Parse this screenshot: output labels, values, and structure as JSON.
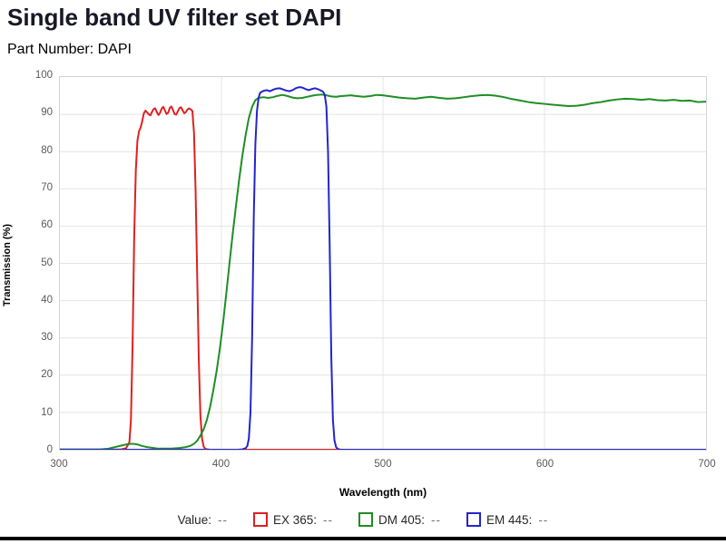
{
  "page": {
    "title": "Single band UV filter set DAPI",
    "subtitle": "Part Number: DAPI"
  },
  "colors": {
    "title_text": "#181826",
    "red": "#df2020",
    "green": "#1e8e24",
    "blue": "#2424cc",
    "grid": "#e4e4e4",
    "plot_border": "#d4d4d4",
    "tick_label": "#595959"
  },
  "legend": {
    "value_label": "Value:",
    "value": "--",
    "items": [
      {
        "name": "EX 365",
        "label": "EX 365:",
        "value": "--",
        "color": "#df2020"
      },
      {
        "name": "DM 405",
        "label": "DM 405:",
        "value": "--",
        "color": "#1e8e24"
      },
      {
        "name": "EM 445",
        "label": "EM 445:",
        "value": "--",
        "color": "#2424cc"
      }
    ]
  },
  "chart_data": {
    "type": "line",
    "title": "Single band UV filter set DAPI",
    "subtitle": "Part Number: DAPI",
    "xlabel": "Wavelength (nm)",
    "ylabel": "Transmission (%)",
    "xlim": [
      300,
      700
    ],
    "ylim": [
      0,
      100
    ],
    "x_ticks": [
      300,
      400,
      500,
      600,
      700
    ],
    "y_ticks": [
      0,
      10,
      20,
      30,
      40,
      50,
      60,
      70,
      80,
      90,
      100
    ],
    "grid": true,
    "legend_position": "bottom",
    "series": [
      {
        "name": "EX 365",
        "id": "ex365",
        "color": "#df2020",
        "points": [
          [
            300,
            0
          ],
          [
            330,
            0
          ],
          [
            338,
            0.1
          ],
          [
            341,
            0.4
          ],
          [
            343,
            2
          ],
          [
            344,
            8
          ],
          [
            345,
            28
          ],
          [
            346,
            57
          ],
          [
            347,
            75
          ],
          [
            348,
            83
          ],
          [
            349,
            85.5
          ],
          [
            350,
            86.5
          ],
          [
            351,
            88.2
          ],
          [
            352,
            90.3
          ],
          [
            353,
            91
          ],
          [
            354,
            90.5
          ],
          [
            355,
            90
          ],
          [
            356,
            89.7
          ],
          [
            357,
            90.6
          ],
          [
            358,
            91.4
          ],
          [
            359,
            91.6
          ],
          [
            360,
            90.6
          ],
          [
            361,
            89.8
          ],
          [
            362,
            90.4
          ],
          [
            363,
            91.5
          ],
          [
            364,
            92
          ],
          [
            365,
            91.1
          ],
          [
            366,
            90.1
          ],
          [
            367,
            90.4
          ],
          [
            368,
            91.7
          ],
          [
            369,
            92.1
          ],
          [
            370,
            91.2
          ],
          [
            371,
            90.1
          ],
          [
            372,
            89.9
          ],
          [
            373,
            90.8
          ],
          [
            374,
            91.7
          ],
          [
            375,
            91.9
          ],
          [
            376,
            91
          ],
          [
            377,
            90.3
          ],
          [
            378,
            90.6
          ],
          [
            379,
            91.3
          ],
          [
            380,
            91.6
          ],
          [
            381,
            91.3
          ],
          [
            382,
            90.9
          ],
          [
            383,
            85
          ],
          [
            384,
            70
          ],
          [
            385,
            47
          ],
          [
            386,
            24
          ],
          [
            387,
            9
          ],
          [
            388,
            3
          ],
          [
            389,
            0.8
          ],
          [
            390,
            0.2
          ],
          [
            393,
            0
          ],
          [
            700,
            0
          ]
        ]
      },
      {
        "name": "DM 405",
        "id": "dm405",
        "color": "#1e8e24",
        "points": [
          [
            300,
            0.1
          ],
          [
            325,
            0.1
          ],
          [
            330,
            0.3
          ],
          [
            334,
            0.7
          ],
          [
            338,
            1.1
          ],
          [
            342,
            1.5
          ],
          [
            345,
            1.6
          ],
          [
            348,
            1.4
          ],
          [
            351,
            1
          ],
          [
            354,
            0.7
          ],
          [
            357,
            0.5
          ],
          [
            360,
            0.35
          ],
          [
            365,
            0.3
          ],
          [
            370,
            0.35
          ],
          [
            374,
            0.45
          ],
          [
            378,
            0.7
          ],
          [
            381,
            1.1
          ],
          [
            383,
            1.6
          ],
          [
            385,
            2.4
          ],
          [
            387,
            3.8
          ],
          [
            389,
            5.5
          ],
          [
            391,
            8
          ],
          [
            393,
            11.5
          ],
          [
            395,
            16
          ],
          [
            397,
            21
          ],
          [
            399,
            27
          ],
          [
            401,
            34
          ],
          [
            403,
            42
          ],
          [
            405,
            50
          ],
          [
            407,
            58
          ],
          [
            409,
            65.5
          ],
          [
            411,
            72.5
          ],
          [
            413,
            79
          ],
          [
            415,
            84.5
          ],
          [
            417,
            89
          ],
          [
            419,
            92
          ],
          [
            421,
            93.8
          ],
          [
            423,
            94.4
          ],
          [
            426,
            94.6
          ],
          [
            429,
            94.4
          ],
          [
            432,
            94.6
          ],
          [
            435,
            95
          ],
          [
            438,
            95.2
          ],
          [
            441,
            94.9
          ],
          [
            444,
            94.5
          ],
          [
            447,
            94.3
          ],
          [
            450,
            94.4
          ],
          [
            453,
            94.7
          ],
          [
            456,
            95
          ],
          [
            459,
            95.2
          ],
          [
            462,
            95.3
          ],
          [
            465,
            95.1
          ],
          [
            468,
            94.8
          ],
          [
            471,
            94.7
          ],
          [
            474,
            94.9
          ],
          [
            477,
            95
          ],
          [
            480,
            95.1
          ],
          [
            484,
            94.9
          ],
          [
            488,
            94.7
          ],
          [
            492,
            94.9
          ],
          [
            496,
            95.2
          ],
          [
            500,
            95.1
          ],
          [
            505,
            94.8
          ],
          [
            510,
            94.5
          ],
          [
            515,
            94.3
          ],
          [
            520,
            94.2
          ],
          [
            525,
            94.5
          ],
          [
            530,
            94.7
          ],
          [
            535,
            94.4
          ],
          [
            540,
            94.2
          ],
          [
            545,
            94.3
          ],
          [
            550,
            94.6
          ],
          [
            555,
            94.9
          ],
          [
            560,
            95.1
          ],
          [
            565,
            95.2
          ],
          [
            570,
            95
          ],
          [
            575,
            94.6
          ],
          [
            580,
            94.1
          ],
          [
            585,
            93.7
          ],
          [
            590,
            93.3
          ],
          [
            595,
            93
          ],
          [
            600,
            92.8
          ],
          [
            605,
            92.6
          ],
          [
            610,
            92.4
          ],
          [
            615,
            92.2
          ],
          [
            620,
            92.3
          ],
          [
            625,
            92.6
          ],
          [
            630,
            93
          ],
          [
            635,
            93.3
          ],
          [
            640,
            93.7
          ],
          [
            645,
            94
          ],
          [
            650,
            94.2
          ],
          [
            655,
            94.1
          ],
          [
            660,
            93.9
          ],
          [
            665,
            94.1
          ],
          [
            670,
            93.8
          ],
          [
            675,
            93.7
          ],
          [
            680,
            93.9
          ],
          [
            685,
            93.6
          ],
          [
            690,
            93.7
          ],
          [
            695,
            93.3
          ],
          [
            700,
            93.4
          ]
        ]
      },
      {
        "name": "EM 445",
        "id": "em445",
        "color": "#2424cc",
        "points": [
          [
            300,
            0
          ],
          [
            410,
            0
          ],
          [
            413,
            0.1
          ],
          [
            415,
            0.4
          ],
          [
            416,
            1
          ],
          [
            417,
            3
          ],
          [
            418,
            10
          ],
          [
            419,
            30
          ],
          [
            420,
            62
          ],
          [
            421,
            82
          ],
          [
            422,
            91
          ],
          [
            423,
            94.5
          ],
          [
            424,
            95.8
          ],
          [
            426,
            96.3
          ],
          [
            428,
            96.5
          ],
          [
            430,
            96.2
          ],
          [
            432,
            96.6
          ],
          [
            434,
            96.9
          ],
          [
            436,
            97
          ],
          [
            438,
            96.7
          ],
          [
            440,
            96.4
          ],
          [
            442,
            96.2
          ],
          [
            444,
            96.5
          ],
          [
            446,
            97
          ],
          [
            448,
            97.3
          ],
          [
            450,
            97.2
          ],
          [
            452,
            96.8
          ],
          [
            454,
            96.5
          ],
          [
            456,
            96.8
          ],
          [
            458,
            97
          ],
          [
            460,
            96.7
          ],
          [
            462,
            96.3
          ],
          [
            463,
            96
          ],
          [
            464,
            95.2
          ],
          [
            465,
            92
          ],
          [
            466,
            80
          ],
          [
            467,
            55
          ],
          [
            468,
            25
          ],
          [
            469,
            8
          ],
          [
            470,
            2.5
          ],
          [
            471,
            0.7
          ],
          [
            472,
            0.2
          ],
          [
            474,
            0
          ],
          [
            700,
            0
          ]
        ]
      }
    ]
  }
}
